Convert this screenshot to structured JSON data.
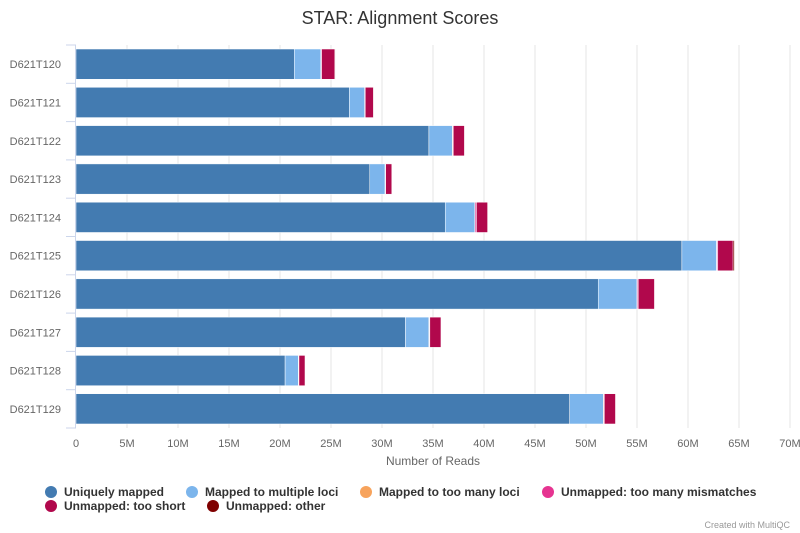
{
  "chart_data": {
    "type": "bar",
    "orientation": "horizontal",
    "stacked": true,
    "title": "STAR: Alignment Scores",
    "xlabel": "Number of Reads",
    "ylabel": "",
    "xlim": [
      0,
      70000000
    ],
    "x_ticks": [
      0,
      5000000,
      10000000,
      15000000,
      20000000,
      25000000,
      30000000,
      35000000,
      40000000,
      45000000,
      50000000,
      55000000,
      60000000,
      65000000,
      70000000
    ],
    "x_tick_labels": [
      "0",
      "5M",
      "10M",
      "15M",
      "20M",
      "25M",
      "30M",
      "35M",
      "40M",
      "45M",
      "50M",
      "55M",
      "60M",
      "65M",
      "70M"
    ],
    "grid": true,
    "legend_position": "bottom",
    "categories": [
      "D621T120",
      "D621T121",
      "D621T122",
      "D621T123",
      "D621T124",
      "D621T125",
      "D621T126",
      "D621T127",
      "D621T128",
      "D621T129"
    ],
    "series": [
      {
        "name": "Uniquely mapped",
        "color": "#437bb1",
        "values": [
          21400000,
          26800000,
          34600000,
          28800000,
          36200000,
          59400000,
          51200000,
          32300000,
          20500000,
          48400000
        ]
      },
      {
        "name": "Mapped to multiple loci",
        "color": "#7cb5ec",
        "values": [
          2600000,
          1500000,
          2300000,
          1500000,
          2900000,
          3400000,
          3800000,
          2300000,
          1300000,
          3300000
        ]
      },
      {
        "name": "Mapped to too many loci",
        "color": "#f7a35c",
        "values": [
          20000,
          20000,
          30000,
          20000,
          30000,
          40000,
          40000,
          30000,
          20000,
          30000
        ]
      },
      {
        "name": "Unmapped: too many mismatches",
        "color": "#e63491",
        "values": [
          60000,
          40000,
          60000,
          40000,
          130000,
          80000,
          80000,
          60000,
          40000,
          70000
        ]
      },
      {
        "name": "Unmapped: too short",
        "color": "#b1084c",
        "values": [
          1300000,
          800000,
          1100000,
          600000,
          1100000,
          1500000,
          1600000,
          1100000,
          600000,
          1100000
        ]
      },
      {
        "name": "Unmapped: other",
        "color": "#7f0000",
        "values": [
          30000,
          20000,
          30000,
          20000,
          30000,
          130000,
          40000,
          30000,
          20000,
          40000
        ]
      }
    ]
  },
  "credit": "Created with MultiQC"
}
